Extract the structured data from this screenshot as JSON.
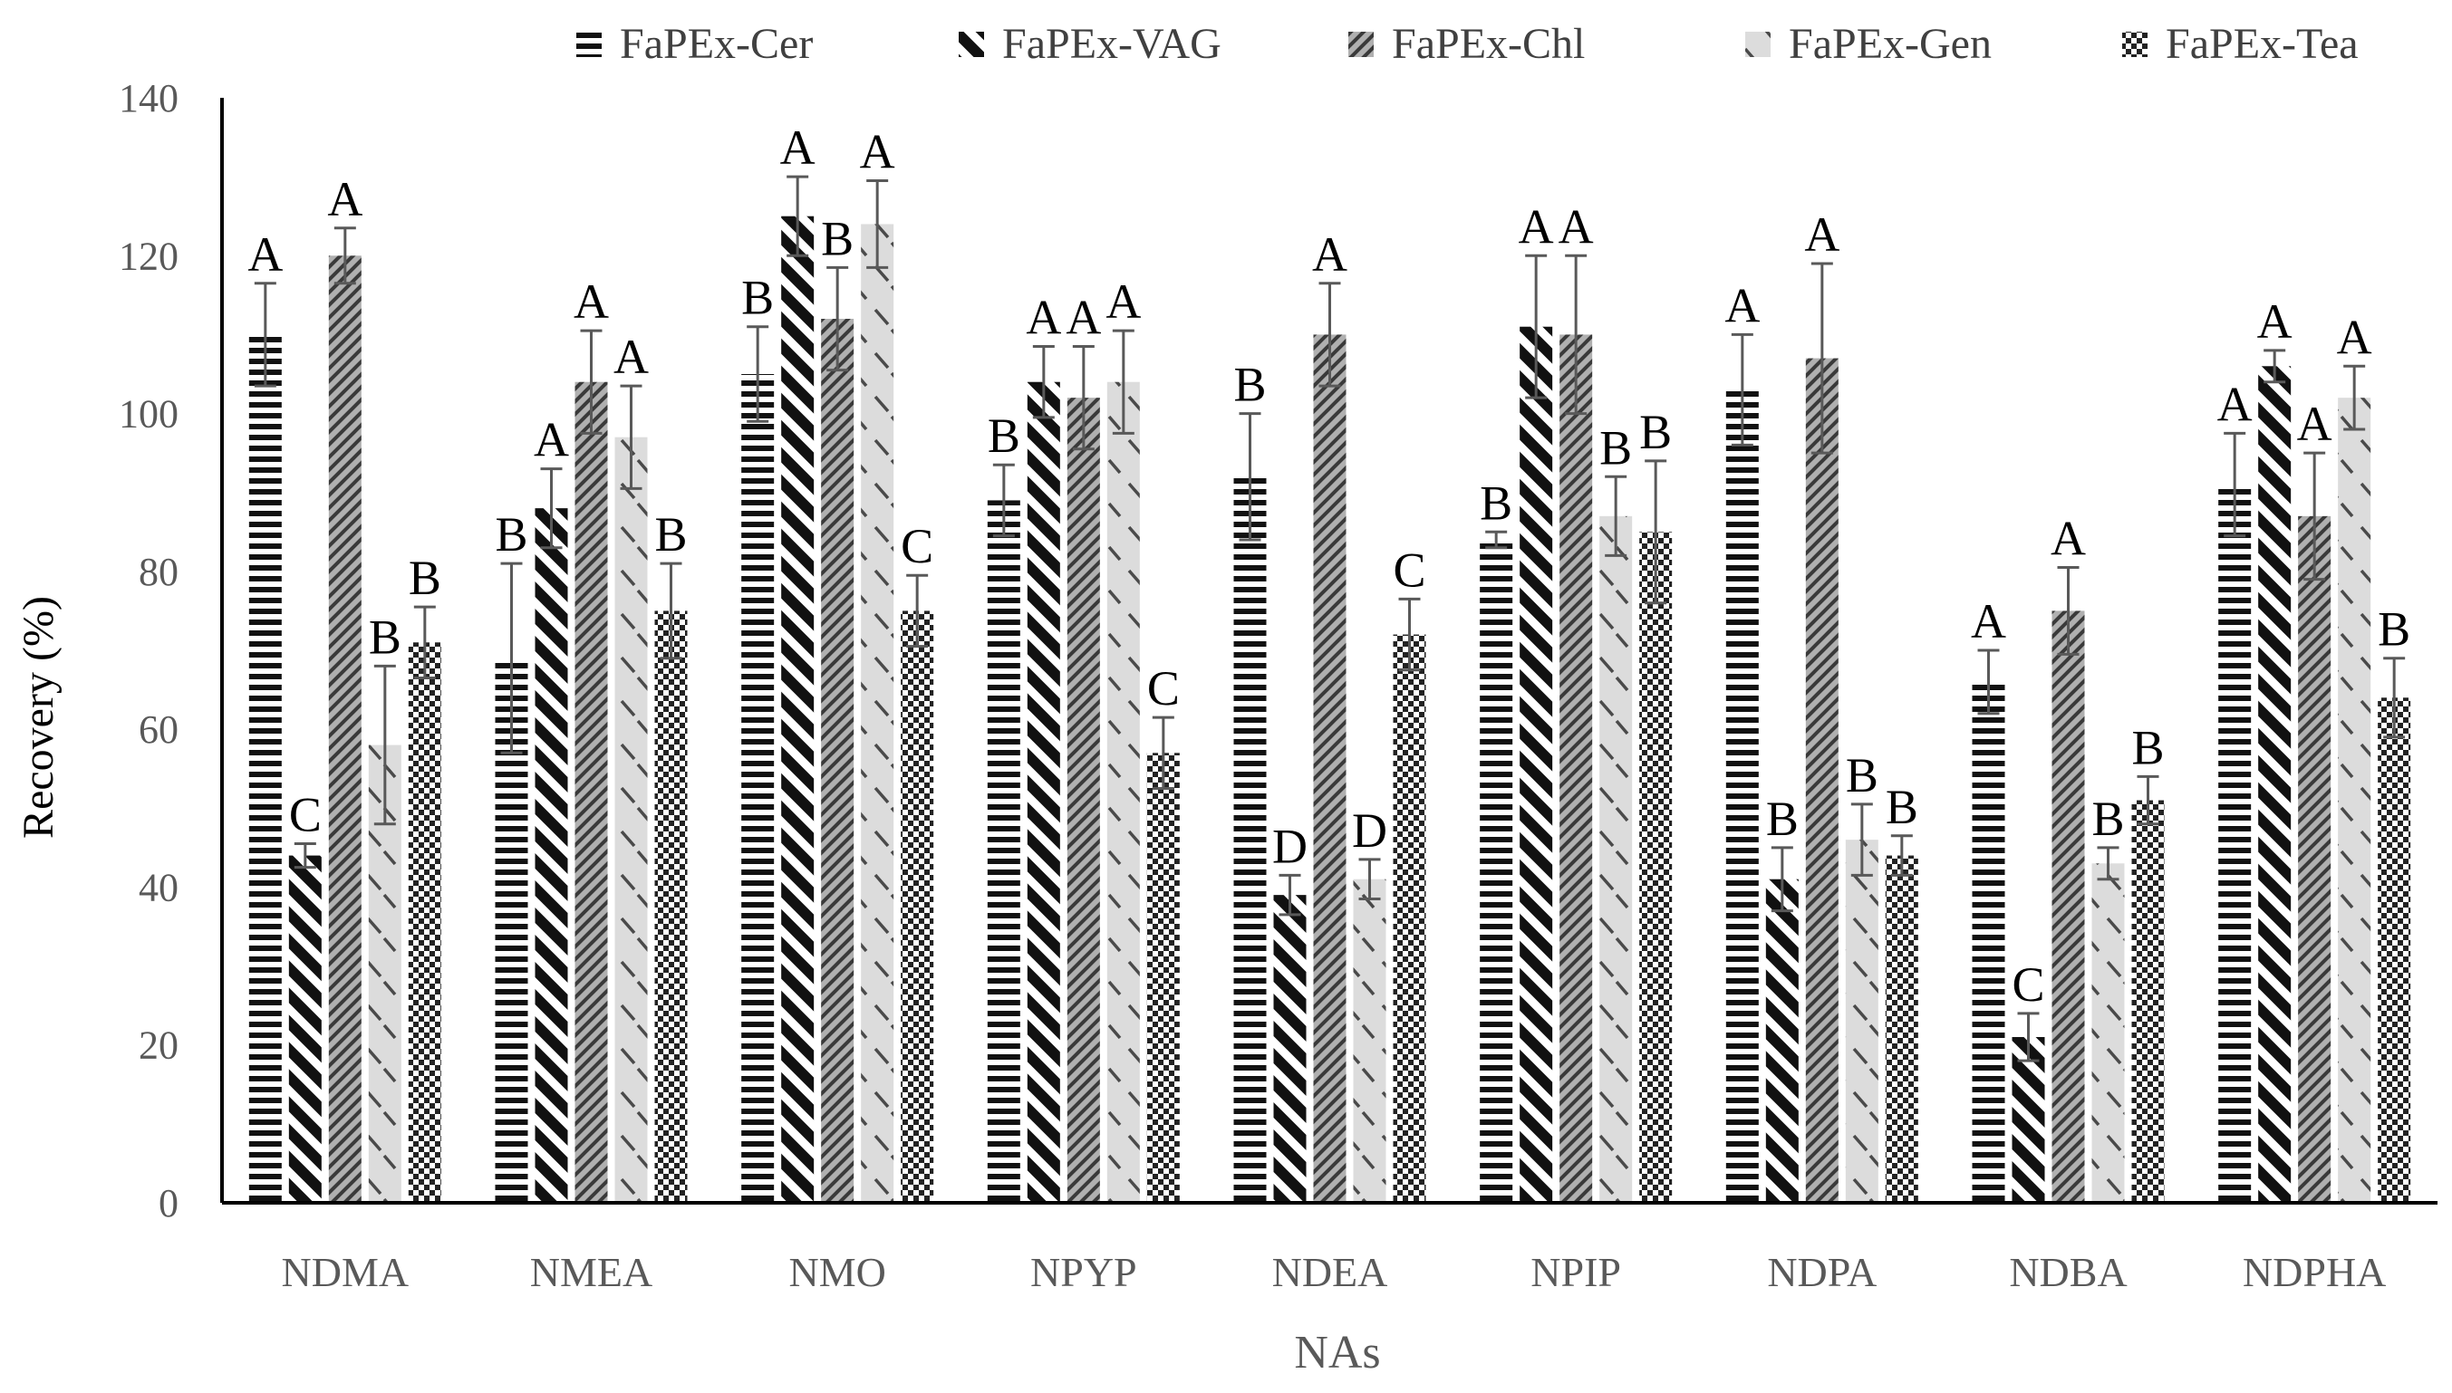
{
  "chart_data": {
    "type": "bar",
    "title": "",
    "xlabel": "NAs",
    "ylabel": "Recovery (%)",
    "ylim": [
      0,
      140
    ],
    "yticks": [
      0,
      20,
      40,
      60,
      80,
      100,
      120,
      140
    ],
    "grid": false,
    "legend_position": "top",
    "error_bars": true,
    "categories": [
      "NDMA",
      "NMEA",
      "NMO",
      "NPYP",
      "NDEA",
      "NPIP",
      "NDPA",
      "NDBA",
      "NDPHA"
    ],
    "series": [
      {
        "name": "FaPEx-Cer",
        "pattern": "horizontal-stripes",
        "values": [
          110,
          69,
          105,
          89,
          92,
          84,
          103,
          66,
          91
        ],
        "errors": [
          6.5,
          12,
          6,
          4.5,
          8,
          1,
          7,
          4,
          6.5
        ],
        "letters": [
          "A",
          "B",
          "B",
          "B",
          "B",
          "B",
          "A",
          "A",
          "A"
        ]
      },
      {
        "name": "FaPEx-VAG",
        "pattern": "diagonal-wide",
        "values": [
          44,
          88,
          125,
          104,
          39,
          111,
          41,
          21,
          106
        ],
        "errors": [
          1.5,
          5,
          5,
          4.5,
          2.5,
          9,
          4,
          3,
          2
        ],
        "letters": [
          "C",
          "A",
          "A",
          "A",
          "D",
          "A",
          "B",
          "C",
          "A"
        ]
      },
      {
        "name": "FaPEx-Chl",
        "pattern": "diagonal-dense",
        "values": [
          120,
          104,
          112,
          102,
          110,
          110,
          107,
          75,
          87
        ],
        "errors": [
          3.5,
          6.5,
          6.5,
          6.5,
          6.5,
          10,
          12,
          5.5,
          8
        ],
        "letters": [
          "A",
          "A",
          "B",
          "A",
          "A",
          "A",
          "A",
          "A",
          "A"
        ]
      },
      {
        "name": "FaPEx-Gen",
        "pattern": "light-dashes",
        "values": [
          58,
          97,
          124,
          104,
          41,
          87,
          46,
          43,
          102
        ],
        "errors": [
          10,
          6.5,
          5.5,
          6.5,
          2.5,
          5,
          4.5,
          2,
          4
        ],
        "letters": [
          "B",
          "A",
          "A",
          "A",
          "D",
          "B",
          "B",
          "B",
          "A"
        ]
      },
      {
        "name": "FaPEx-Tea",
        "pattern": "checker",
        "values": [
          71,
          75,
          75,
          57,
          72,
          85,
          44,
          51,
          64
        ],
        "errors": [
          4.5,
          6,
          4.5,
          4.5,
          4.5,
          9,
          2.5,
          3,
          5
        ],
        "letters": [
          "B",
          "B",
          "C",
          "C",
          "C",
          "B",
          "B",
          "B",
          "B"
        ]
      }
    ]
  }
}
